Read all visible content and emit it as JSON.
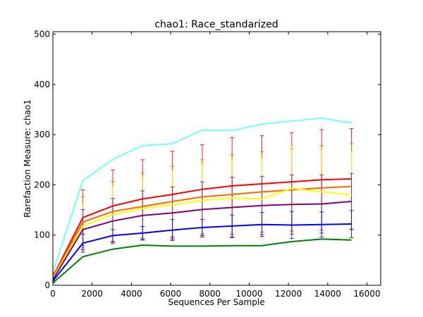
{
  "chart_data": {
    "type": "line",
    "title": "chao1: Race_standarized",
    "xlabel": "Sequences Per Sample",
    "ylabel": "Rarefaction Measure: chao1",
    "xlim": [
      0,
      16700
    ],
    "ylim": [
      0,
      505
    ],
    "xticks": [
      0,
      2000,
      4000,
      6000,
      8000,
      10000,
      12000,
      14000,
      16000
    ],
    "yticks": [
      0,
      100,
      200,
      300,
      400,
      500
    ],
    "grid": false,
    "legend": "none",
    "x": [
      10,
      1530,
      3050,
      4570,
      6090,
      7610,
      9130,
      10650,
      12170,
      13690,
      15210
    ],
    "series": [
      {
        "color": "#00ffff",
        "values": [
          27,
          208,
          251,
          278,
          282,
          309,
          308,
          321,
          327,
          333,
          323
        ],
        "errors": null
      },
      {
        "color": "#ff0000",
        "values": [
          18,
          135,
          158,
          172,
          181,
          191,
          198,
          202,
          206,
          210,
          212
        ],
        "errors": [
          8,
          55,
          72,
          78,
          86,
          89,
          96,
          96,
          98,
          100,
          100
        ]
      },
      {
        "color": "#ff6600",
        "values": [
          17,
          126,
          147,
          157,
          167,
          176,
          181,
          186,
          190,
          194,
          197
        ],
        "errors": [
          7,
          50,
          60,
          66,
          70,
          74,
          79,
          80,
          82,
          84,
          85
        ]
      },
      {
        "color": "#ffff00",
        "values": [
          15,
          118,
          141,
          153,
          160,
          169,
          174,
          172,
          193,
          186,
          180
        ],
        "errors": [
          6,
          45,
          57,
          62,
          68,
          72,
          77,
          81,
          83,
          85,
          87
        ]
      },
      {
        "color": "#800080",
        "values": [
          12,
          111,
          128,
          139,
          144,
          151,
          155,
          159,
          161,
          162,
          167
        ],
        "errors": [
          5,
          40,
          45,
          49,
          52,
          55,
          60,
          58,
          59,
          58,
          56
        ]
      },
      {
        "color": "#0000ff",
        "values": [
          9,
          84,
          99,
          104,
          110,
          115,
          118,
          121,
          120,
          121,
          122
        ],
        "errors": [
          4,
          18,
          12,
          13,
          21,
          16,
          22,
          24,
          27,
          25,
          27
        ]
      },
      {
        "color": "#008000",
        "values": [
          5,
          57,
          72,
          80,
          78,
          78,
          79,
          79,
          87,
          92,
          90
        ],
        "errors": null
      }
    ]
  }
}
